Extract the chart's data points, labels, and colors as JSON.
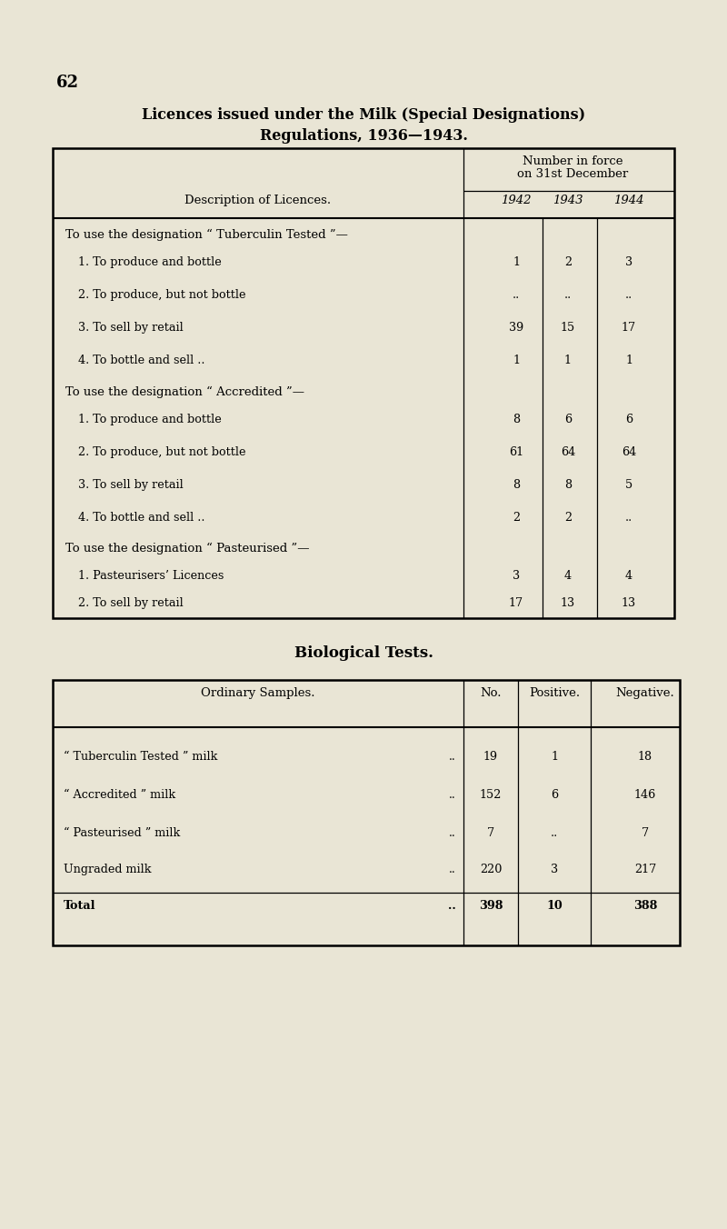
{
  "bg_color": "#e9e5d5",
  "page_num": "62",
  "title1": "Licences issued under the Milk (Special Designations)",
  "title2": "Regulations, 1936—1943.",
  "t1_header1": "Number in force",
  "t1_header2": "on 31st December",
  "t1_desc_label": "Description of Licences.",
  "t1_years": [
    "1942",
    "1943",
    "1944"
  ],
  "t1_rows": [
    {
      "label": "To use the designation “ Tuberculin Tested ”—",
      "vals": [
        "",
        "",
        ""
      ],
      "section": true,
      "indent": false
    },
    {
      "label": "1. To produce and bottle",
      "vals": [
        "1",
        "2",
        "3"
      ],
      "section": false,
      "indent": true
    },
    {
      "label": "2. To produce, but not bottle",
      "vals": [
        "..",
        "..",
        ".."
      ],
      "section": false,
      "indent": true
    },
    {
      "label": "3. To sell by retail",
      "vals": [
        "39",
        "15",
        "17"
      ],
      "section": false,
      "indent": true
    },
    {
      "label": "4. To bottle and sell ..",
      "vals": [
        "1",
        "1",
        "1"
      ],
      "section": false,
      "indent": true
    },
    {
      "label": "To use the designation “ Accredited ”—",
      "vals": [
        "",
        "",
        ""
      ],
      "section": true,
      "indent": false
    },
    {
      "label": "1. To produce and bottle",
      "vals": [
        "8",
        "6",
        "6"
      ],
      "section": false,
      "indent": true
    },
    {
      "label": "2. To produce, but not bottle",
      "vals": [
        "61",
        "64",
        "64"
      ],
      "section": false,
      "indent": true
    },
    {
      "label": "3. To sell by retail",
      "vals": [
        "8",
        "8",
        "5"
      ],
      "section": false,
      "indent": true
    },
    {
      "label": "4. To bottle and sell ..",
      "vals": [
        "2",
        "2",
        ".."
      ],
      "section": false,
      "indent": true
    },
    {
      "label": "To use the designation “ Pasteurised ”—",
      "vals": [
        "",
        "",
        ""
      ],
      "section": true,
      "indent": false
    },
    {
      "label": "1. Pasteurisers’ Licences",
      "vals": [
        "3",
        "4",
        "4"
      ],
      "section": false,
      "indent": true
    },
    {
      "label": "2. To sell by retail",
      "vals": [
        "17",
        "13",
        "13"
      ],
      "section": false,
      "indent": true
    }
  ],
  "bio_title": "Biological Tests.",
  "bio_headers": [
    "Ordinary Samples.",
    "No.",
    "Positive.",
    "Negative."
  ],
  "bio_labels": [
    "“ Tuberculin Tested ” milk",
    "“ Accredited ” milk",
    "“ Pasteurised ” milk",
    "Ungraded milk",
    "Total"
  ],
  "bio_dots": [
    true,
    true,
    true,
    true,
    true
  ],
  "bio_vals": [
    [
      "19",
      "1",
      "18"
    ],
    [
      "152",
      "6",
      "146"
    ],
    [
      "7",
      "..",
      "7"
    ],
    [
      "220",
      "3",
      "217"
    ],
    [
      "398",
      "10",
      "388"
    ]
  ],
  "bio_bold": [
    false,
    false,
    false,
    false,
    true
  ]
}
